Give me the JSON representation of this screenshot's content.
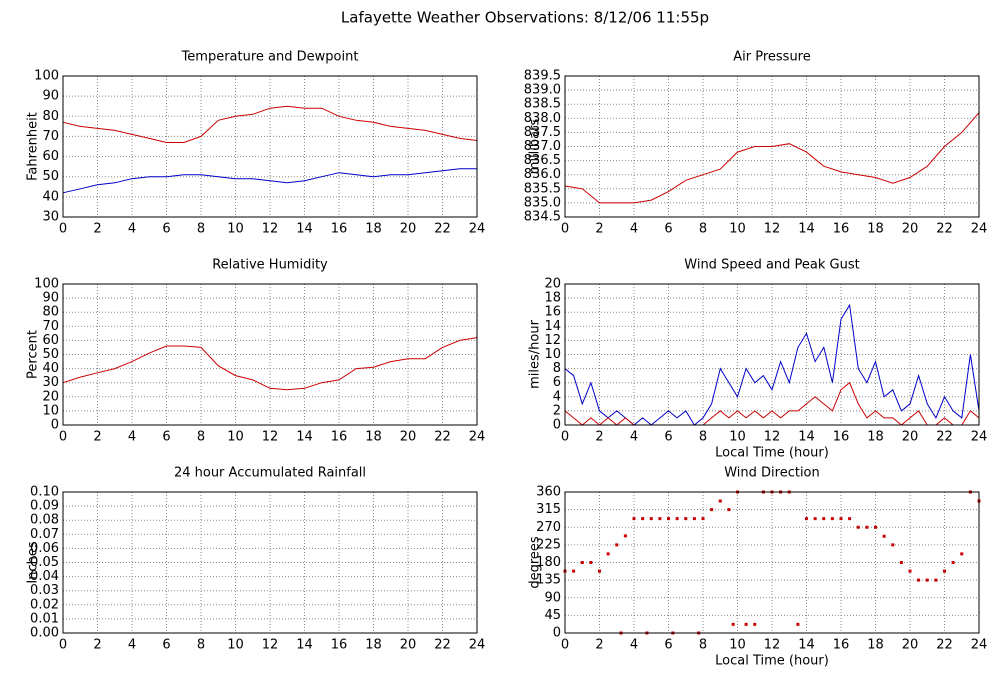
{
  "title": "Lafayette Weather Observations: 8/12/06 11:55p",
  "chart_data": [
    {
      "type": "line",
      "title": "Temperature and Dewpoint",
      "ylabel": "Fahrenheit",
      "x": [
        0,
        1,
        2,
        3,
        4,
        5,
        6,
        7,
        8,
        9,
        10,
        11,
        12,
        13,
        14,
        15,
        16,
        17,
        18,
        19,
        20,
        21,
        22,
        23,
        24
      ],
      "series": [
        {
          "color": "#cc0000",
          "values": [
            77,
            75,
            74,
            73,
            71,
            69,
            67,
            67,
            70,
            78,
            80,
            81,
            84,
            85,
            84,
            84,
            80,
            78,
            77,
            75,
            74,
            73,
            71,
            69,
            68
          ]
        },
        {
          "color": "#0000cc",
          "values": [
            42,
            44,
            46,
            47,
            49,
            50,
            50,
            51,
            51,
            50,
            49,
            49,
            48,
            47,
            48,
            50,
            52,
            51,
            50,
            51,
            51,
            52,
            53,
            54,
            54
          ]
        }
      ],
      "xlim": [
        0,
        24
      ],
      "xticks": [
        0,
        2,
        4,
        6,
        8,
        10,
        12,
        14,
        16,
        18,
        20,
        22,
        24
      ],
      "ylim": [
        30,
        100
      ],
      "yticks": [
        30,
        40,
        50,
        60,
        70,
        80,
        90,
        100
      ],
      "grid": true
    },
    {
      "type": "line",
      "title": "Air Pressure",
      "ylabel": "millibars",
      "x": [
        0,
        1,
        2,
        3,
        4,
        5,
        6,
        7,
        8,
        9,
        10,
        11,
        12,
        13,
        14,
        15,
        16,
        17,
        18,
        19,
        20,
        21,
        22,
        23,
        24
      ],
      "series": [
        {
          "color": "#cc0000",
          "values": [
            835.6,
            835.5,
            835.0,
            835.0,
            835.0,
            835.1,
            835.4,
            835.8,
            836.0,
            836.2,
            836.8,
            837.0,
            837.0,
            837.1,
            836.8,
            836.3,
            836.1,
            836.0,
            835.9,
            835.7,
            835.9,
            836.3,
            837.0,
            837.5,
            838.2
          ]
        }
      ],
      "xlim": [
        0,
        24
      ],
      "xticks": [
        0,
        2,
        4,
        6,
        8,
        10,
        12,
        14,
        16,
        18,
        20,
        22,
        24
      ],
      "ylim": [
        834.5,
        839.5
      ],
      "yticks": [
        834.5,
        {
          "value": 835,
          "label": "835.0"
        },
        835.5,
        {
          "value": 836,
          "label": "836.0"
        },
        836.5,
        {
          "value": 837,
          "label": "837.0"
        },
        837.5,
        {
          "value": 838,
          "label": "838.0"
        },
        838.5,
        {
          "value": 839,
          "label": "839.0"
        },
        839.5
      ],
      "grid": true
    },
    {
      "type": "line",
      "title": "Relative Humidity",
      "ylabel": "Percent",
      "x": [
        0,
        1,
        2,
        3,
        4,
        5,
        6,
        7,
        8,
        9,
        10,
        11,
        12,
        13,
        14,
        15,
        16,
        17,
        18,
        19,
        20,
        21,
        22,
        23,
        24
      ],
      "series": [
        {
          "color": "#cc0000",
          "values": [
            30,
            34,
            37,
            40,
            45,
            51,
            56,
            56,
            55,
            42,
            35,
            32,
            26,
            25,
            26,
            30,
            32,
            40,
            41,
            45,
            47,
            47,
            55,
            60,
            62
          ]
        }
      ],
      "xlim": [
        0,
        24
      ],
      "xticks": [
        0,
        2,
        4,
        6,
        8,
        10,
        12,
        14,
        16,
        18,
        20,
        22,
        24
      ],
      "ylim": [
        0,
        100
      ],
      "yticks": [
        0,
        10,
        20,
        30,
        40,
        50,
        60,
        70,
        80,
        90,
        100
      ],
      "grid": true
    },
    {
      "type": "line",
      "title": "Wind Speed and Peak Gust",
      "ylabel": "miles/hour",
      "xlabel": "Local Time (hour)",
      "x": [
        0,
        0.5,
        1,
        1.5,
        2,
        2.5,
        3,
        3.5,
        4,
        4.5,
        5,
        5.5,
        6,
        6.5,
        7,
        7.5,
        8,
        8.5,
        9,
        9.5,
        10,
        10.5,
        11,
        11.5,
        12,
        12.5,
        13,
        13.5,
        14,
        14.5,
        15,
        15.5,
        16,
        16.5,
        17,
        17.5,
        18,
        18.5,
        19,
        19.5,
        20,
        20.5,
        21,
        21.5,
        22,
        22.5,
        23,
        23.5,
        24
      ],
      "series": [
        {
          "color": "#0000cc",
          "values": [
            8,
            7,
            3,
            6,
            2,
            1,
            2,
            1,
            0,
            1,
            0,
            1,
            2,
            1,
            2,
            0,
            1,
            3,
            8,
            6,
            4,
            8,
            6,
            7,
            5,
            9,
            6,
            11,
            13,
            9,
            11,
            6,
            15,
            17,
            8,
            6,
            9,
            4,
            5,
            2,
            3,
            7,
            3,
            1,
            4,
            2,
            1,
            10,
            2
          ]
        },
        {
          "color": "#cc0000",
          "values": [
            2,
            1,
            0,
            1,
            0,
            1,
            0,
            1,
            0,
            0,
            0,
            0,
            0,
            0,
            0,
            0,
            0,
            1,
            2,
            1,
            2,
            1,
            2,
            1,
            2,
            1,
            2,
            2,
            3,
            4,
            3,
            2,
            5,
            6,
            3,
            1,
            2,
            1,
            1,
            0,
            1,
            2,
            0,
            0,
            1,
            0,
            0,
            2,
            1
          ]
        }
      ],
      "xlim": [
        0,
        24
      ],
      "xticks": [
        0,
        2,
        4,
        6,
        8,
        10,
        12,
        14,
        16,
        18,
        20,
        22,
        24
      ],
      "ylim": [
        0,
        20
      ],
      "yticks": [
        0,
        2,
        4,
        6,
        8,
        10,
        12,
        14,
        16,
        18,
        20
      ],
      "grid": true
    },
    {
      "type": "line",
      "title": "24 hour Accumulated Rainfall",
      "ylabel": "Inches",
      "x": [
        0,
        24
      ],
      "series": [
        {
          "color": "#cc0000",
          "values": [
            0,
            0
          ]
        }
      ],
      "xlim": [
        0,
        24
      ],
      "xticks": [
        0,
        2,
        4,
        6,
        8,
        10,
        12,
        14,
        16,
        18,
        20,
        22,
        24
      ],
      "ylim": [
        0,
        0.1
      ],
      "yticks": [
        {
          "value": 0,
          "label": "0.00"
        },
        {
          "value": 0.01,
          "label": "0.01"
        },
        {
          "value": 0.02,
          "label": "0.02"
        },
        {
          "value": 0.03,
          "label": "0.03"
        },
        {
          "value": 0.04,
          "label": "0.04"
        },
        {
          "value": 0.05,
          "label": "0.05"
        },
        {
          "value": 0.06,
          "label": "0.06"
        },
        {
          "value": 0.07,
          "label": "0.07"
        },
        {
          "value": 0.08,
          "label": "0.08"
        },
        {
          "value": 0.09,
          "label": "0.09"
        },
        {
          "value": 0.1,
          "label": "0.10"
        }
      ],
      "grid": true
    },
    {
      "type": "scatter",
      "title": "Wind Direction",
      "ylabel": "degrees",
      "xlabel": "Local Time (hour)",
      "x": [
        0,
        0.5,
        1,
        1.5,
        2,
        2.5,
        3,
        3.5,
        4,
        4.5,
        5,
        5.5,
        6,
        6.5,
        7,
        7.5,
        8,
        8.5,
        9,
        9.5,
        10,
        10.5,
        11,
        11.5,
        12,
        12.5,
        13,
        13.5,
        14,
        14.5,
        15,
        15.5,
        16,
        16.5,
        17,
        17.5,
        18,
        18.5,
        19,
        19.5,
        20,
        20.5,
        21,
        21.5,
        22,
        22.5,
        23,
        23.5,
        24,
        3.25,
        4.75,
        6.25,
        7.75,
        9.75
      ],
      "series": [
        {
          "color": "#cc0000",
          "values": [
            158,
            158,
            180,
            180,
            158,
            202,
            225,
            248,
            292,
            292,
            292,
            292,
            292,
            292,
            292,
            292,
            292,
            315,
            337,
            315,
            360,
            22,
            22,
            360,
            360,
            360,
            360,
            22,
            292,
            292,
            292,
            292,
            292,
            292,
            270,
            270,
            270,
            247,
            225,
            180,
            158,
            135,
            135,
            135,
            158,
            180,
            202,
            360,
            337,
            0,
            0,
            0,
            0,
            22
          ]
        }
      ],
      "xlim": [
        0,
        24
      ],
      "xticks": [
        0,
        2,
        4,
        6,
        8,
        10,
        12,
        14,
        16,
        18,
        20,
        22,
        24
      ],
      "ylim": [
        0,
        360
      ],
      "yticks": [
        0,
        45,
        90,
        135,
        180,
        225,
        270,
        315,
        360
      ],
      "grid": true
    }
  ]
}
